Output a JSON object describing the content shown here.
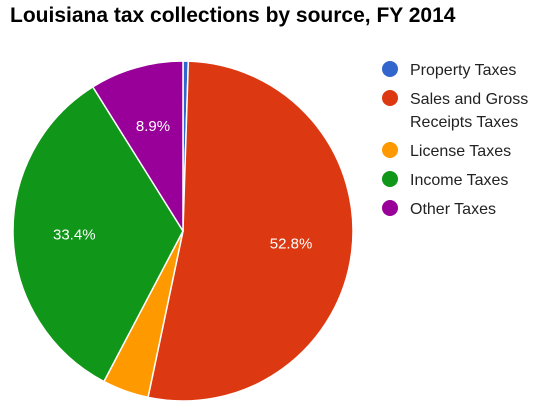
{
  "chart_data": {
    "type": "pie",
    "title": "Louisiana tax collections by source, FY 2014",
    "categories": [
      "Property Taxes",
      "Sales and Gross Receipts Taxes",
      "License Taxes",
      "Income Taxes",
      "Other Taxes"
    ],
    "values": [
      0.5,
      52.8,
      4.4,
      33.4,
      8.9
    ],
    "data_labels": [
      "",
      "52.8%",
      "",
      "33.4%",
      "8.9%"
    ],
    "colors": [
      "#3366cc",
      "#dc3912",
      "#ff9900",
      "#109618",
      "#990099"
    ],
    "legend_position": "right",
    "start_angle_deg": 0,
    "direction": "clockwise"
  }
}
